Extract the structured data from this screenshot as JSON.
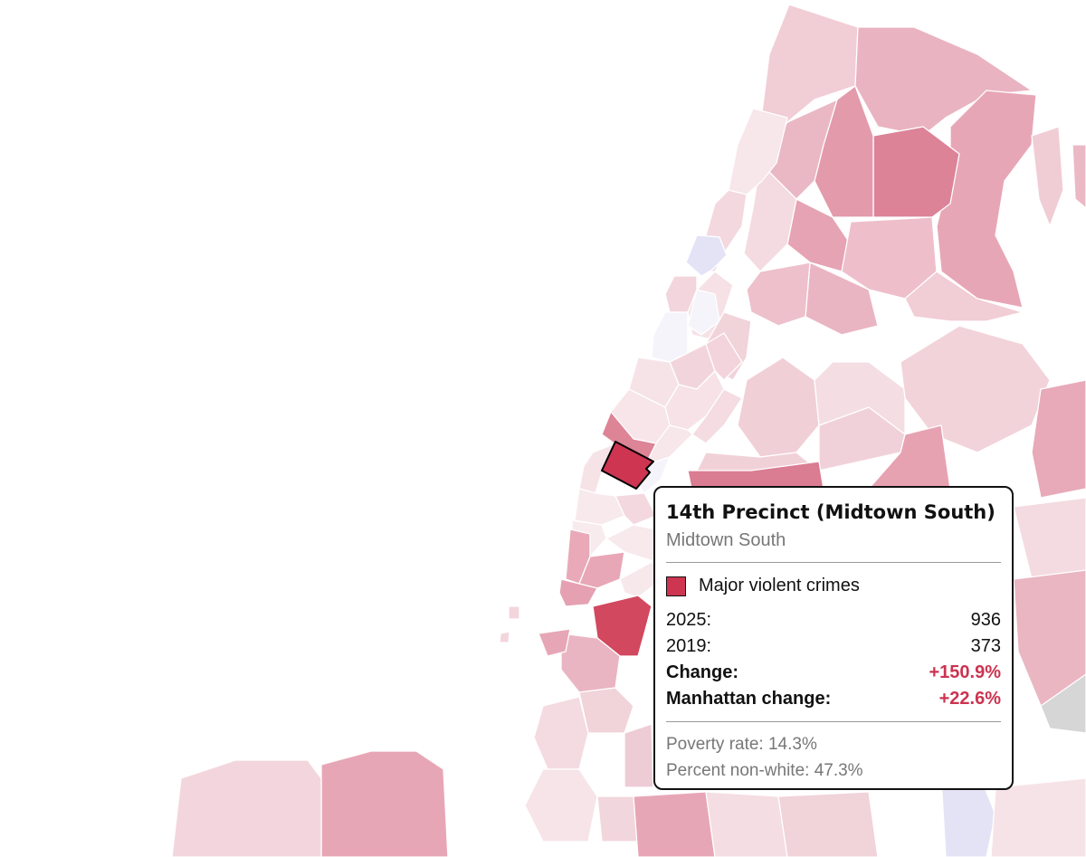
{
  "colors": {
    "water": "#ffffff",
    "border": "#ffffff",
    "highlight": "#cd3551",
    "increase_text": "#cc3350",
    "scale_light": "#f7e4e8",
    "scale_mid": "#e9adbb",
    "scale_dark": "#dc8295",
    "decrease": "#e8e8fa",
    "no_data": "#d8d8d8"
  },
  "tooltip": {
    "title": "14th Precinct (Midtown South)",
    "subtitle": "Midtown South",
    "metric_label": "Major violent crimes",
    "rows": [
      {
        "label": "2025:",
        "value": "936"
      },
      {
        "label": "2019:",
        "value": "373"
      },
      {
        "label": "Change:",
        "value": "+150.9%"
      },
      {
        "label": "Manhattan change:",
        "value": "+22.6%"
      }
    ],
    "poverty": "Poverty rate: 14.3%",
    "nonwhite": "Percent non-white: 47.3%"
  }
}
